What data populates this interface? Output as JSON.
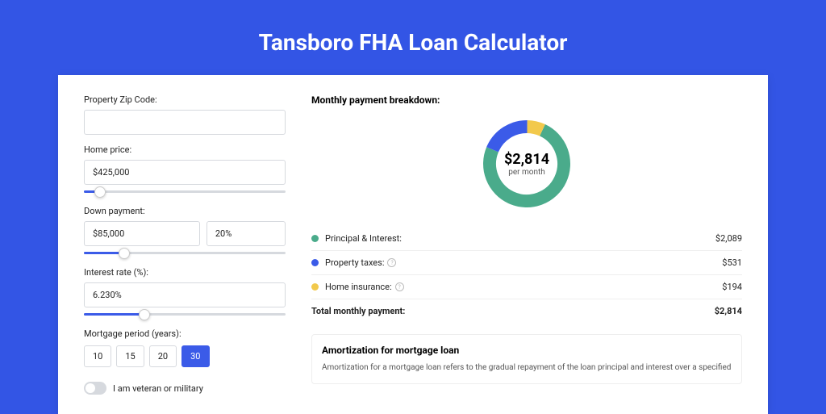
{
  "page_title": "Tansboro FHA Loan Calculator",
  "form": {
    "zip_label": "Property Zip Code:",
    "zip_value": "",
    "home_price_label": "Home price:",
    "home_price_value": "$425,000",
    "home_price_slider_pct": 8,
    "down_payment_label": "Down payment:",
    "down_payment_value": "$85,000",
    "down_payment_pct_value": "20%",
    "down_payment_slider_pct": 20,
    "interest_label": "Interest rate (%):",
    "interest_value": "6.230%",
    "interest_slider_pct": 30,
    "period_label": "Mortgage period (years):",
    "period_options": [
      "10",
      "15",
      "20",
      "30"
    ],
    "period_selected": "30",
    "veteran_label": "I am veteran or military",
    "veteran_on": false
  },
  "breakdown": {
    "title": "Monthly payment breakdown:",
    "center_amount": "$2,814",
    "center_sub": "per month",
    "items": [
      {
        "label": "Principal & Interest:",
        "value": "$2,089",
        "color": "#4aab8b",
        "pct": 74.2,
        "info": false
      },
      {
        "label": "Property taxes:",
        "value": "$531",
        "color": "#3b5be8",
        "pct": 18.9,
        "info": true
      },
      {
        "label": "Home insurance:",
        "value": "$194",
        "color": "#f2c94c",
        "pct": 6.9,
        "info": true
      }
    ],
    "total_label": "Total monthly payment:",
    "total_value": "$2,814"
  },
  "donut": {
    "radius": 46,
    "stroke_width": 16,
    "bg_color": "#ffffff"
  },
  "amortization": {
    "title": "Amortization for mortgage loan",
    "text": "Amortization for a mortgage loan refers to the gradual repayment of the loan principal and interest over a specified"
  }
}
